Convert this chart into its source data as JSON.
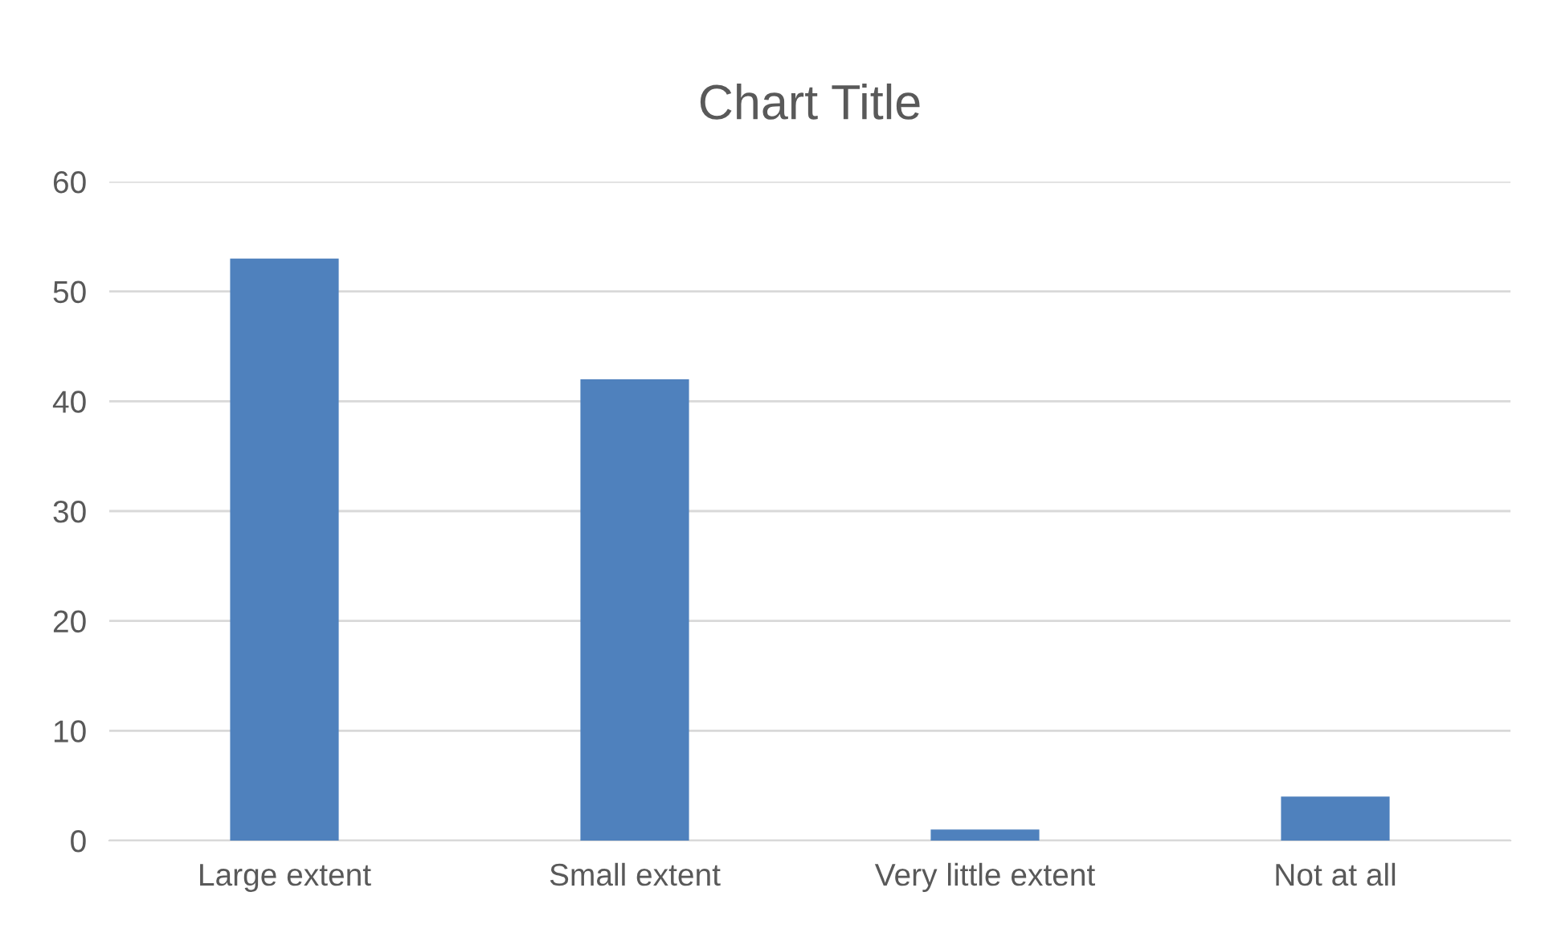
{
  "chart_data": {
    "type": "bar",
    "title": "Chart Title",
    "categories": [
      "Large extent",
      "Small extent",
      "Very little extent",
      "Not at all"
    ],
    "values": [
      53,
      42,
      1,
      4
    ],
    "color": "#4f81bd",
    "ylim": [
      0,
      60
    ],
    "yticks": [
      0,
      10,
      20,
      30,
      40,
      50,
      60
    ],
    "grid": "y"
  }
}
